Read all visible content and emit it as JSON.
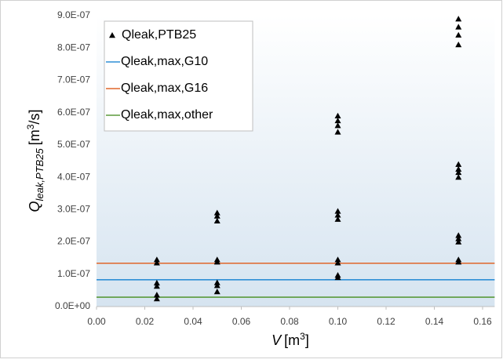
{
  "chart_data": {
    "type": "scatter",
    "y_label": {
      "symbol": "Q",
      "subscript": "leak,PTB25",
      "unit": "[m",
      "unit_power": "3",
      "unit_end": "/s]"
    },
    "x_label": {
      "symbol": "V",
      "unit": "[m",
      "unit_power": "3",
      "unit_end": "]"
    },
    "series": [
      {
        "name": "Qleak,PTB25",
        "color": "#000000",
        "x": [
          0.025,
          0.025,
          0.025,
          0.025,
          0.025,
          0.025,
          0.05,
          0.05,
          0.05,
          0.05,
          0.05,
          0.05,
          0.05,
          0.05,
          0.1,
          0.1,
          0.1,
          0.1,
          0.1,
          0.1,
          0.1,
          0.1,
          0.1,
          0.1,
          0.1,
          0.15,
          0.15,
          0.15,
          0.15,
          0.15,
          0.15,
          0.15,
          0.15,
          0.15,
          0.15,
          0.15,
          0.15,
          0.15
        ],
        "values": [
          1.45e-07,
          1.35e-07,
          7.3e-08,
          6.3e-08,
          3.6e-08,
          2.4e-08,
          2.9e-07,
          2.8e-07,
          2.65e-07,
          1.45e-07,
          1.38e-07,
          7.4e-08,
          6.5e-08,
          4.6e-08,
          5.9e-07,
          5.75e-07,
          5.6e-07,
          5.4e-07,
          2.95e-07,
          2.83e-07,
          2.7e-07,
          1.45e-07,
          1.35e-07,
          9.7e-08,
          9e-08,
          8.9e-07,
          8.65e-07,
          8.4e-07,
          8.1e-07,
          4.4e-07,
          4.25e-07,
          4.15e-07,
          4e-07,
          2.2e-07,
          2.1e-07,
          2e-07,
          1.45e-07,
          1.38e-07
        ]
      }
    ],
    "lines": [
      {
        "name": "Qleak,max,G10",
        "color": "#2f8fd6",
        "y": 8.3e-08
      },
      {
        "name": "Qleak,max,G16",
        "color": "#e0662a",
        "y": 1.34e-07
      },
      {
        "name": "Qleak,max,other",
        "color": "#5b9a3c",
        "y": 2.9e-08
      }
    ],
    "xlim": [
      0,
      0.165
    ],
    "xticks": [
      {
        "value": 0,
        "label": "0.00"
      },
      {
        "value": 0.02,
        "label": "0.02"
      },
      {
        "value": 0.04,
        "label": "0.04"
      },
      {
        "value": 0.06,
        "label": "0.06"
      },
      {
        "value": 0.08,
        "label": "0.08"
      },
      {
        "value": 0.1,
        "label": "0.10"
      },
      {
        "value": 0.12,
        "label": "0.12"
      },
      {
        "value": 0.14,
        "label": "0.14"
      },
      {
        "value": 0.16,
        "label": "0.16"
      }
    ],
    "ylim": [
      0,
      9e-07
    ],
    "yticks": [
      {
        "value": 0,
        "label": "0.0E+00"
      },
      {
        "value": 1e-07,
        "label": "1.0E-07"
      },
      {
        "value": 2e-07,
        "label": "2.0E-07"
      },
      {
        "value": 3e-07,
        "label": "3.0E-07"
      },
      {
        "value": 4e-07,
        "label": "4.0E-07"
      },
      {
        "value": 5e-07,
        "label": "5.0E-07"
      },
      {
        "value": 6e-07,
        "label": "6.0E-07"
      },
      {
        "value": 7e-07,
        "label": "7.0E-07"
      },
      {
        "value": 8e-07,
        "label": "8.0E-07"
      },
      {
        "value": 9e-07,
        "label": "9.0E-07"
      }
    ],
    "grid": false,
    "legend": "upper-left"
  }
}
